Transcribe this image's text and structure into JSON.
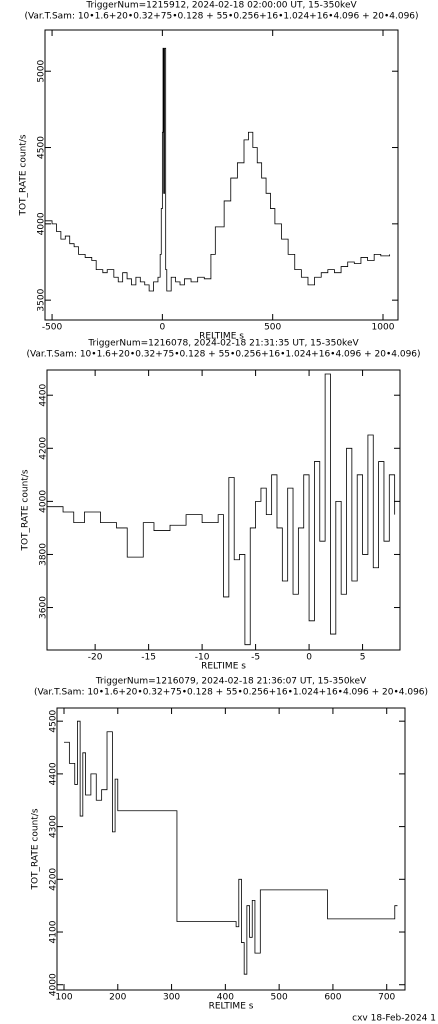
{
  "chart_data": [
    {
      "type": "line",
      "step": true,
      "color": "#000000",
      "title": "TriggerNum=1215912, 2024-02-18 02:00:00 UT, 15-350keV",
      "subtitle": "(Var.T.Sam: 10•1.6+20•0.32+75•0.128  +  55•0.256+16•1.024+16•4.096  +  20•4.096)",
      "xlabel": "RELTIME  s",
      "ylabel": "TOT_RATE  count/s",
      "xlim": [
        -532,
        1068
      ],
      "ylim": [
        3370,
        5270
      ],
      "xticks": [
        -500,
        0,
        500,
        1000
      ],
      "yticks": [
        3500,
        4000,
        4500,
        5000
      ],
      "x": [
        -530,
        -500,
        -480,
        -460,
        -440,
        -420,
        -400,
        -380,
        -350,
        -320,
        -300,
        -270,
        -250,
        -220,
        -200,
        -180,
        -160,
        -140,
        -120,
        -100,
        -80,
        -60,
        -40,
        -20,
        -10,
        -5,
        0,
        3,
        6,
        10,
        15,
        20,
        40,
        60,
        80,
        100,
        130,
        160,
        190,
        220,
        240,
        280,
        310,
        340,
        370,
        390,
        410,
        430,
        450,
        470,
        490,
        510,
        540,
        570,
        600,
        630,
        660,
        690,
        720,
        750,
        780,
        810,
        840,
        870,
        900,
        930,
        960,
        990,
        1030
      ],
      "values": [
        4020,
        4000,
        3950,
        3900,
        3920,
        3870,
        3850,
        3800,
        3780,
        3760,
        3700,
        3680,
        3700,
        3650,
        3620,
        3680,
        3640,
        3600,
        3650,
        3620,
        3600,
        3560,
        3620,
        3650,
        3800,
        4100,
        4600,
        5150,
        4200,
        5150,
        3700,
        3560,
        3650,
        3620,
        3600,
        3640,
        3620,
        3650,
        3640,
        3800,
        3980,
        4150,
        4300,
        4400,
        4550,
        4600,
        4500,
        4400,
        4300,
        4200,
        4100,
        4000,
        3900,
        3800,
        3700,
        3650,
        3600,
        3650,
        3680,
        3700,
        3680,
        3720,
        3750,
        3740,
        3780,
        3760,
        3800,
        3790,
        3800
      ]
    },
    {
      "type": "line",
      "step": true,
      "color": "#000000",
      "title": "TriggerNum=1216078, 2024-02-18 21:31:35 UT, 15-350keV",
      "subtitle": "(Var.T.Sam: 10•1.6+20•0.32+75•0.128  +  55•0.256+16•1.024+16•4.096  +  20•4.096)",
      "xlabel": "RELTIME  s",
      "ylabel": "TOT_RATE  count/s",
      "xlim": [
        -24.5,
        8.5
      ],
      "ylim": [
        3440,
        4495
      ],
      "xticks": [
        -20,
        -15,
        -10,
        -5,
        0,
        5
      ],
      "yticks": [
        3600,
        3800,
        4000,
        4200,
        4400
      ],
      "x": [
        -24.5,
        -23,
        -22,
        -21,
        -19.5,
        -18,
        -17,
        -15.5,
        -14.5,
        -13,
        -11.5,
        -10,
        -8.5,
        -8,
        -7.5,
        -7,
        -6.5,
        -6,
        -5.5,
        -5,
        -4.5,
        -4,
        -3.5,
        -3,
        -2.5,
        -2,
        -1.5,
        -1,
        -0.5,
        0,
        0.5,
        1,
        1.5,
        2,
        2.5,
        3,
        3.5,
        4,
        4.5,
        5,
        5.5,
        6,
        6.5,
        7,
        7.5,
        8
      ],
      "values": [
        3980,
        3960,
        3920,
        3960,
        3920,
        3900,
        3790,
        3920,
        3890,
        3910,
        3950,
        3920,
        3950,
        3640,
        4090,
        3780,
        3800,
        3460,
        3900,
        4000,
        4050,
        3950,
        4100,
        3900,
        3700,
        4050,
        3650,
        3900,
        4100,
        3550,
        4150,
        3850,
        4480,
        3500,
        4000,
        3650,
        4200,
        3700,
        4100,
        3800,
        4250,
        3750,
        4150,
        3850,
        4100,
        3950
      ]
    },
    {
      "type": "line",
      "step": true,
      "color": "#000000",
      "title": "TriggerNum=1216079, 2024-02-18 21:36:07 UT, 15-350keV",
      "subtitle": "(Var.T.Sam: 10•1.6+20•0.32+75•0.128  +  55•0.256+16•1.024+16•4.096  +  20•4.096)",
      "xlabel": "RELTIME  s",
      "ylabel": "TOT_RATE  count/s",
      "xlim": [
        87,
        734
      ],
      "ylim": [
        3990,
        4525
      ],
      "xticks": [
        100,
        200,
        300,
        400,
        500,
        600,
        700
      ],
      "yticks": [
        4000,
        4100,
        4200,
        4300,
        4400,
        4500
      ],
      "x": [
        100,
        110,
        120,
        125,
        130,
        135,
        140,
        150,
        160,
        170,
        180,
        190,
        195,
        200,
        310,
        420,
        425,
        430,
        435,
        440,
        445,
        450,
        455,
        465,
        590,
        715,
        720
      ],
      "values": [
        4460,
        4420,
        4380,
        4500,
        4320,
        4440,
        4360,
        4400,
        4350,
        4370,
        4480,
        4290,
        4390,
        4330,
        4120,
        4110,
        4200,
        4080,
        4020,
        4150,
        4090,
        4160,
        4060,
        4180,
        4125,
        4150,
        4150
      ],
      "footer": "cxv 18-Feb-2024 1"
    }
  ]
}
